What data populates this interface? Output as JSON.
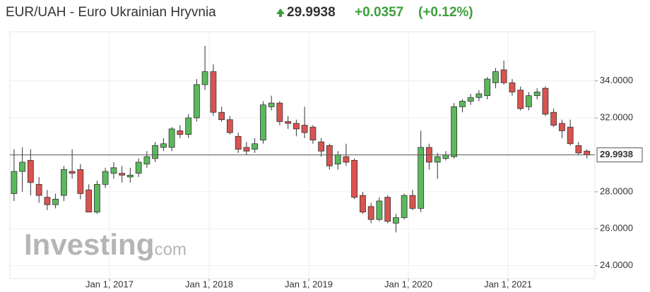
{
  "header": {
    "title": "EUR/UAH - Euro Ukrainian Hryvnia",
    "price": "29.9938",
    "change": "+0.0357",
    "change_pct": "(+0.12%)"
  },
  "chart_data": {
    "type": "candlestick",
    "watermark": {
      "brand": "Investing",
      "suffix": ".com"
    },
    "up_color": "#5cb85c",
    "down_color": "#d9534f",
    "current_value": 29.9938,
    "grid": true,
    "x": [
      2016.042,
      2016.125,
      2016.208,
      2016.292,
      2016.375,
      2016.458,
      2016.542,
      2016.625,
      2016.708,
      2016.792,
      2016.875,
      2016.958,
      2017.042,
      2017.125,
      2017.208,
      2017.292,
      2017.375,
      2017.458,
      2017.542,
      2017.625,
      2017.708,
      2017.792,
      2017.875,
      2017.958,
      2018.042,
      2018.125,
      2018.208,
      2018.292,
      2018.375,
      2018.458,
      2018.542,
      2018.625,
      2018.708,
      2018.792,
      2018.875,
      2018.958,
      2019.042,
      2019.125,
      2019.208,
      2019.292,
      2019.375,
      2019.458,
      2019.542,
      2019.625,
      2019.708,
      2019.792,
      2019.875,
      2019.958,
      2020.042,
      2020.125,
      2020.208,
      2020.292,
      2020.375,
      2020.458,
      2020.542,
      2020.625,
      2020.708,
      2020.792,
      2020.875,
      2020.958,
      2021.042,
      2021.125,
      2021.208,
      2021.292,
      2021.375,
      2021.458,
      2021.542,
      2021.625,
      2021.708,
      2021.792
    ],
    "open": [
      27.9,
      29.1,
      29.7,
      28.4,
      27.7,
      27.3,
      27.8,
      29.1,
      29.2,
      28.1,
      26.9,
      28.4,
      29.0,
      29.0,
      28.8,
      29.0,
      29.5,
      29.8,
      30.4,
      30.4,
      31.3,
      31.1,
      32.0,
      33.8,
      34.5,
      32.3,
      31.9,
      31.0,
      30.4,
      30.3,
      30.8,
      32.6,
      32.8,
      31.8,
      31.7,
      31.6,
      31.5,
      30.7,
      30.5,
      29.5,
      29.9,
      29.7,
      27.8,
      27.2,
      26.5,
      27.7,
      26.3,
      26.6,
      27.8,
      27.1,
      30.4,
      29.6,
      29.8,
      29.9,
      32.6,
      32.9,
      33.1,
      33.2,
      33.9,
      34.6,
      33.9,
      33.5,
      32.6,
      33.2,
      33.6,
      32.3,
      31.7,
      31.5,
      30.5,
      30.2
    ],
    "high": [
      30.3,
      30.4,
      30.3,
      28.8,
      28.1,
      27.9,
      29.4,
      30.3,
      29.5,
      28.4,
      28.6,
      29.3,
      29.6,
      29.4,
      29.3,
      29.8,
      30.2,
      30.7,
      30.9,
      31.5,
      31.6,
      32.2,
      34.1,
      35.9,
      34.9,
      32.6,
      32.1,
      31.2,
      30.7,
      30.9,
      32.9,
      33.2,
      32.9,
      32.1,
      31.9,
      32.6,
      31.6,
      30.9,
      30.6,
      30.2,
      30.6,
      29.8,
      28.0,
      27.4,
      27.7,
      27.8,
      26.8,
      27.9,
      28.1,
      31.3,
      30.6,
      30.1,
      30.2,
      32.8,
      33.0,
      33.3,
      33.5,
      34.2,
      34.7,
      35.1,
      34.1,
      33.7,
      33.4,
      33.6,
      33.7,
      32.5,
      31.9,
      31.9,
      30.7,
      30.3
    ],
    "low": [
      27.5,
      28.0,
      27.8,
      27.4,
      27.0,
      27.1,
      27.5,
      28.7,
      27.6,
      26.9,
      26.8,
      28.2,
      28.7,
      28.5,
      28.5,
      28.8,
      29.3,
      29.6,
      30.2,
      30.2,
      30.9,
      30.9,
      31.8,
      33.5,
      32.1,
      31.8,
      31.1,
      30.1,
      30.0,
      30.1,
      30.6,
      32.4,
      31.6,
      31.4,
      31.0,
      30.9,
      30.6,
      29.9,
      29.2,
      29.2,
      29.4,
      27.6,
      26.8,
      26.3,
      26.4,
      26.3,
      25.8,
      26.5,
      27.0,
      26.9,
      29.2,
      28.7,
      29.7,
      29.8,
      32.3,
      32.7,
      32.9,
      33.0,
      33.6,
      33.8,
      33.2,
      32.4,
      32.4,
      33.0,
      32.1,
      31.5,
      30.9,
      30.5,
      30.0,
      29.8
    ],
    "close": [
      29.1,
      29.6,
      28.5,
      27.8,
      27.3,
      27.6,
      29.2,
      29.0,
      27.9,
      26.9,
      28.4,
      29.1,
      29.3,
      28.9,
      28.9,
      29.6,
      29.9,
      30.5,
      30.6,
      31.4,
      31.1,
      32.0,
      33.8,
      34.5,
      32.3,
      31.9,
      31.2,
      30.3,
      30.2,
      30.6,
      32.7,
      32.8,
      31.8,
      31.7,
      31.4,
      31.2,
      30.8,
      30.2,
      29.4,
      30.0,
      29.6,
      27.7,
      26.9,
      26.5,
      27.5,
      26.4,
      26.6,
      27.8,
      27.1,
      30.4,
      29.6,
      29.9,
      30.0,
      32.6,
      32.9,
      33.1,
      33.3,
      34.1,
      34.5,
      33.9,
      33.4,
      32.5,
      33.2,
      33.4,
      32.2,
      31.6,
      31.3,
      30.6,
      30.1,
      29.9938
    ],
    "xlim": [
      2016.0,
      2021.872
    ],
    "xticks": [
      {
        "value": 2017,
        "label": "Jan 1, 2017"
      },
      {
        "value": 2018,
        "label": "Jan 1, 2018"
      },
      {
        "value": 2019,
        "label": "Jan 1, 2019"
      },
      {
        "value": 2020,
        "label": "Jan 1, 2020"
      },
      {
        "value": 2021,
        "label": "Jan 1, 2021"
      }
    ],
    "ylim": [
      23.3,
      36.66
    ],
    "yticks": [
      {
        "value": 24,
        "label": "24.0000"
      },
      {
        "value": 26,
        "label": "26.0000"
      },
      {
        "value": 28,
        "label": "28.0000"
      },
      {
        "value": 32,
        "label": "32.0000"
      },
      {
        "value": 34,
        "label": "34.0000"
      }
    ]
  }
}
